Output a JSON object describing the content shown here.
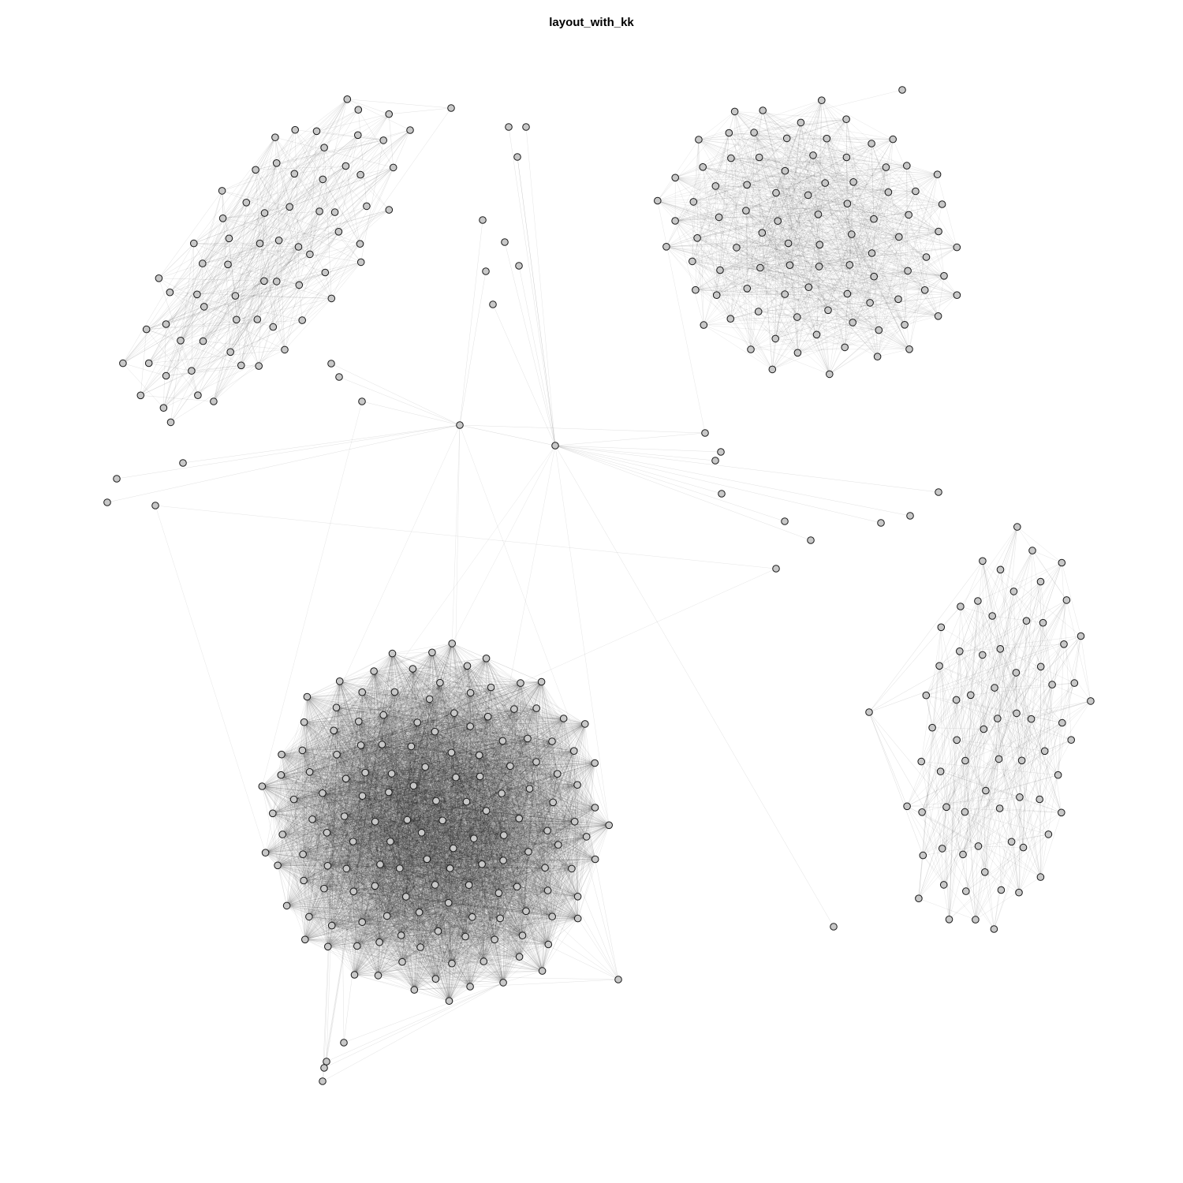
{
  "title": "layout_with_kk",
  "colors": {
    "node_fill": "#c8c8c8",
    "node_stroke": "#1a1a1a",
    "edge": "#000000",
    "background": "#ffffff"
  },
  "graph": {
    "layout": "Kamada-Kawai",
    "components": [
      {
        "name": "cluster-top-left",
        "nodes": 68,
        "edge_density": "medium"
      },
      {
        "name": "cluster-top-right",
        "nodes": 90,
        "edge_density": "medium-high"
      },
      {
        "name": "cluster-bottom-left",
        "nodes": 150,
        "edge_density": "very-high"
      },
      {
        "name": "cluster-bottom-right",
        "nodes": 70,
        "edge_density": "medium"
      }
    ],
    "bridge_node_count": 2,
    "peripheral_node_count": 28
  }
}
